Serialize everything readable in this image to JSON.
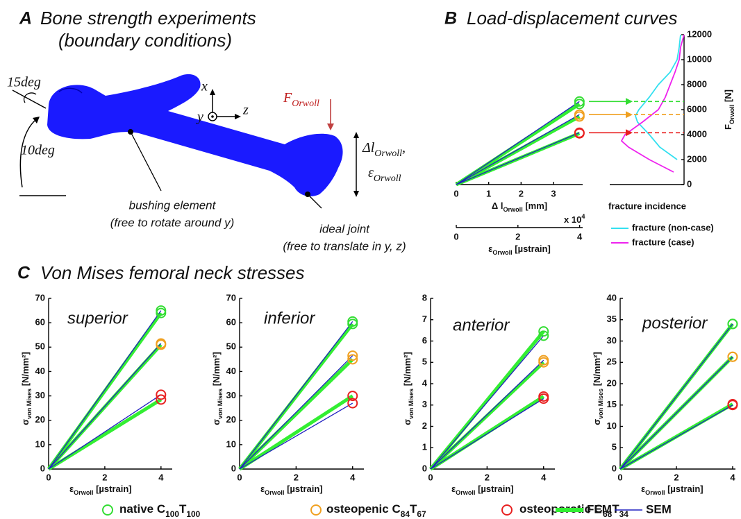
{
  "panel_a": {
    "letter": "A",
    "title": "Bone strength experiments",
    "subtitle": "(boundary conditions)",
    "rotation_label": "15deg",
    "flexion_label": "10deg",
    "axes": {
      "x": "x",
      "y": "y",
      "z": "z"
    },
    "force": [
      "F",
      "Orwoll"
    ],
    "displacement": [
      "Δl",
      "Orwoll",
      ","
    ],
    "strain": [
      "ε",
      "Orwoll"
    ],
    "bushing": {
      "title": "bushing element",
      "note": "(free to rotate around y)"
    },
    "joint": {
      "title": "ideal joint",
      "note": "(free to translate in y, z)"
    }
  },
  "panel_b": {
    "letter": "B",
    "title": "Load-displacement curves"
  },
  "panel_c": {
    "letter": "C",
    "title": "Von Mises femoral neck stresses"
  },
  "legend": {
    "conditions": [
      {
        "name": [
          "native C",
          "100",
          "T",
          "100"
        ],
        "color": "#33dd33"
      },
      {
        "name": [
          "osteopenic C",
          "84",
          "T",
          "67"
        ],
        "color": "#f0a020"
      },
      {
        "name": [
          "osteoporotic C",
          "68",
          "T",
          "34"
        ],
        "color": "#e82020"
      }
    ],
    "models": [
      {
        "name": "FEM",
        "color": "#33ee33"
      },
      {
        "name": "SEM",
        "color": "#2020c0"
      }
    ]
  },
  "chart_data": [
    {
      "type": "line",
      "x": [
        0,
        3.8
      ],
      "xlim": [
        0,
        3.9
      ],
      "xticks": [
        0,
        1,
        2,
        3
      ],
      "xlabel": [
        "Δ l",
        "Orwoll",
        " [mm]"
      ],
      "x2lim": [
        0,
        4.1
      ],
      "x2ticks": [
        0,
        2,
        4
      ],
      "x2label": [
        "ε",
        "Orwoll",
        " [µstrain]"
      ],
      "x2scale": [
        "x 10",
        "4"
      ],
      "ylim": [
        0,
        12000
      ],
      "yticks": [
        0,
        2000,
        4000,
        6000,
        8000,
        10000,
        12000
      ],
      "ylabel": [
        "F",
        "Orwoll",
        " [N]"
      ],
      "fem": [
        [
          0,
          6450
        ],
        [
          0,
          5450
        ],
        [
          0,
          4100
        ]
      ],
      "sem": [
        [
          0,
          6650
        ],
        [
          0,
          5600
        ],
        [
          0,
          4150
        ]
      ],
      "fracture": {
        "xlabel": "fracture incidence",
        "series": [
          {
            "name": "fracture (non-case)",
            "color": "#33e0f0",
            "y": [
              2000,
              3000,
              4000,
              5000,
              5500,
              6000,
              7000,
              8000,
              9000,
              10000,
              11000,
              12000
            ],
            "values": [
              0.1,
              0.35,
              0.5,
              0.67,
              0.7,
              0.65,
              0.5,
              0.37,
              0.2,
              0.1,
              0.07,
              0.05
            ]
          },
          {
            "name": "fracture (case)",
            "color": "#ee22ee",
            "y": [
              1000,
              2000,
              3000,
              3500,
              4000,
              5000,
              6000,
              7000,
              8000,
              9000,
              10000,
              11000,
              12000
            ],
            "values": [
              0.15,
              0.5,
              0.8,
              0.9,
              0.85,
              0.6,
              0.37,
              0.27,
              0.2,
              0.13,
              0.07,
              0.05,
              0
            ]
          }
        ]
      }
    },
    {
      "type": "line",
      "title": "superior",
      "x": [
        0,
        4
      ],
      "xlim": [
        0,
        4.4
      ],
      "xticks": [
        0,
        2,
        4
      ],
      "ylim": [
        0,
        70
      ],
      "yticks": [
        0,
        10,
        20,
        30,
        40,
        50,
        60,
        70
      ],
      "xlabel": [
        "ε",
        "Orwoll",
        " [µstrain]"
      ],
      "ylabel": [
        "σ",
        "von Mises",
        " [N/mm²]"
      ],
      "fem": [
        [
          0,
          64
        ],
        [
          0,
          51
        ],
        [
          0,
          28.5
        ]
      ],
      "sem": [
        [
          0,
          65
        ],
        [
          0,
          51.5
        ],
        [
          0,
          30.5
        ]
      ]
    },
    {
      "type": "line",
      "title": "inferior",
      "x": [
        0,
        4
      ],
      "xlim": [
        0,
        4.4
      ],
      "xticks": [
        0,
        2,
        4
      ],
      "ylim": [
        0,
        70
      ],
      "yticks": [
        0,
        10,
        20,
        30,
        40,
        50,
        60,
        70
      ],
      "xlabel": [
        "ε",
        "Orwoll",
        " [µstrain]"
      ],
      "ylabel": [
        "σ",
        "von Mises",
        " [N/mm²]"
      ],
      "fem": [
        [
          0,
          59.5
        ],
        [
          0,
          45
        ],
        [
          0,
          30
        ]
      ],
      "sem": [
        [
          0,
          60.5
        ],
        [
          0,
          46.5
        ],
        [
          0,
          27
        ]
      ]
    },
    {
      "type": "line",
      "title": "anterior",
      "x": [
        0,
        4
      ],
      "xlim": [
        0,
        4.4
      ],
      "xticks": [
        0,
        2,
        4
      ],
      "ylim": [
        0,
        8
      ],
      "yticks": [
        0,
        1,
        2,
        3,
        4,
        5,
        6,
        7,
        8
      ],
      "xlabel": [
        "ε",
        "Orwoll",
        " [µstrain]"
      ],
      "ylabel": [
        "σ",
        "von Mises",
        " [N/mm²]"
      ],
      "fem": [
        [
          0,
          6.45
        ],
        [
          0,
          5.0
        ],
        [
          0,
          3.4
        ]
      ],
      "sem": [
        [
          0,
          6.25
        ],
        [
          0,
          5.1
        ],
        [
          0,
          3.3
        ]
      ]
    },
    {
      "type": "line",
      "title": "posterior",
      "x": [
        0,
        4
      ],
      "xlim": [
        0,
        4.1
      ],
      "xticks": [
        0,
        2,
        4
      ],
      "ylim": [
        0,
        40
      ],
      "yticks": [
        0,
        5,
        10,
        15,
        20,
        25,
        30,
        35,
        40
      ],
      "xlabel": [
        "ε",
        "Orwoll",
        " [µstrain]"
      ],
      "ylabel": [
        "σ",
        "von Mises",
        " [N/mm²]"
      ],
      "fem": [
        [
          0,
          34
        ],
        [
          0,
          26.3
        ],
        [
          0,
          15.2
        ]
      ],
      "sem": [
        [
          0,
          34
        ],
        [
          0,
          26.3
        ],
        [
          0,
          15
        ]
      ]
    }
  ]
}
